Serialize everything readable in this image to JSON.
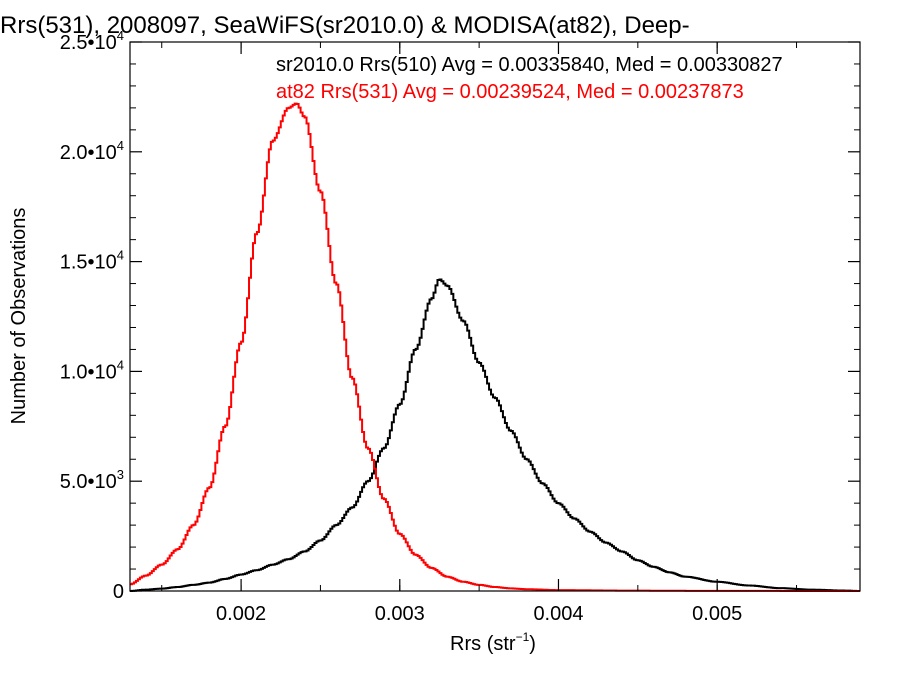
{
  "chart_data": {
    "type": "line",
    "title": "Rrs(531), 2008097, SeaWiFS(sr2010.0) & MODISA(at82), Deep-",
    "xlabel": "Rrs (str",
    "xlabel_sup": "−1",
    "xlabel_close": ")",
    "ylabel": "Number of Observations",
    "xlim": [
      0.0013,
      0.0059
    ],
    "ylim": [
      0,
      25000
    ],
    "xticks": [
      {
        "value": 0.002,
        "label": "0.002"
      },
      {
        "value": 0.003,
        "label": "0.003"
      },
      {
        "value": 0.004,
        "label": "0.004"
      },
      {
        "value": 0.005,
        "label": "0.005"
      }
    ],
    "yticks": [
      {
        "value": 0,
        "mant": "0",
        "exp": ""
      },
      {
        "value": 5000,
        "mant": "5.0•10",
        "exp": "3"
      },
      {
        "value": 10000,
        "mant": "1.0•10",
        "exp": "4"
      },
      {
        "value": 15000,
        "mant": "1.5•10",
        "exp": "4"
      },
      {
        "value": 20000,
        "mant": "2.0•10",
        "exp": "4"
      },
      {
        "value": 25000,
        "mant": "2.5•10",
        "exp": "4"
      }
    ],
    "annotations": [
      {
        "text": "sr2010.0 Rrs(510) Avg = 0.00335840, Med = 0.00330827",
        "color": "#000000"
      },
      {
        "text": "at82 Rrs(531) Avg = 0.00239524, Med = 0.00237873",
        "color": "#ff0000"
      }
    ],
    "series": [
      {
        "color": "#000000",
        "step": "mid",
        "x": [
          0.0013,
          0.0014,
          0.0015,
          0.0016,
          0.0017,
          0.0018,
          0.0019,
          0.002,
          0.0021,
          0.0022,
          0.0023,
          0.0024,
          0.0025,
          0.0026,
          0.0027,
          0.0028,
          0.0029,
          0.003,
          0.0031,
          0.0032,
          0.00325,
          0.0033,
          0.0034,
          0.0035,
          0.0036,
          0.0037,
          0.0038,
          0.0039,
          0.004,
          0.0041,
          0.0042,
          0.0043,
          0.0044,
          0.0045,
          0.0046,
          0.0047,
          0.0048,
          0.005,
          0.0052,
          0.0054,
          0.0056,
          0.0058,
          0.0059
        ],
        "y": [
          0,
          60,
          110,
          180,
          280,
          380,
          550,
          750,
          950,
          1200,
          1450,
          1800,
          2300,
          3000,
          3800,
          5000,
          6500,
          8500,
          11000,
          13300,
          14200,
          13900,
          12300,
          10400,
          8800,
          7300,
          6000,
          4900,
          4000,
          3300,
          2700,
          2200,
          1800,
          1400,
          1100,
          850,
          650,
          420,
          250,
          130,
          60,
          20,
          0
        ]
      },
      {
        "color": "#ff0000",
        "step": "mid",
        "x": [
          0.0013,
          0.0014,
          0.0015,
          0.0016,
          0.0017,
          0.0018,
          0.0019,
          0.002,
          0.0021,
          0.0022,
          0.0023,
          0.00235,
          0.0024,
          0.0025,
          0.0026,
          0.0027,
          0.0028,
          0.0029,
          0.003,
          0.0031,
          0.0032,
          0.0033,
          0.0034,
          0.0035,
          0.0036,
          0.0037,
          0.0038,
          0.004,
          0.0045,
          0.005,
          0.0059
        ],
        "y": [
          300,
          700,
          1200,
          1900,
          3000,
          4700,
          7500,
          11300,
          16300,
          20500,
          22000,
          22200,
          21600,
          18200,
          14000,
          9700,
          6500,
          4200,
          2600,
          1650,
          1050,
          650,
          420,
          280,
          180,
          120,
          80,
          40,
          15,
          5,
          0
        ]
      }
    ]
  }
}
